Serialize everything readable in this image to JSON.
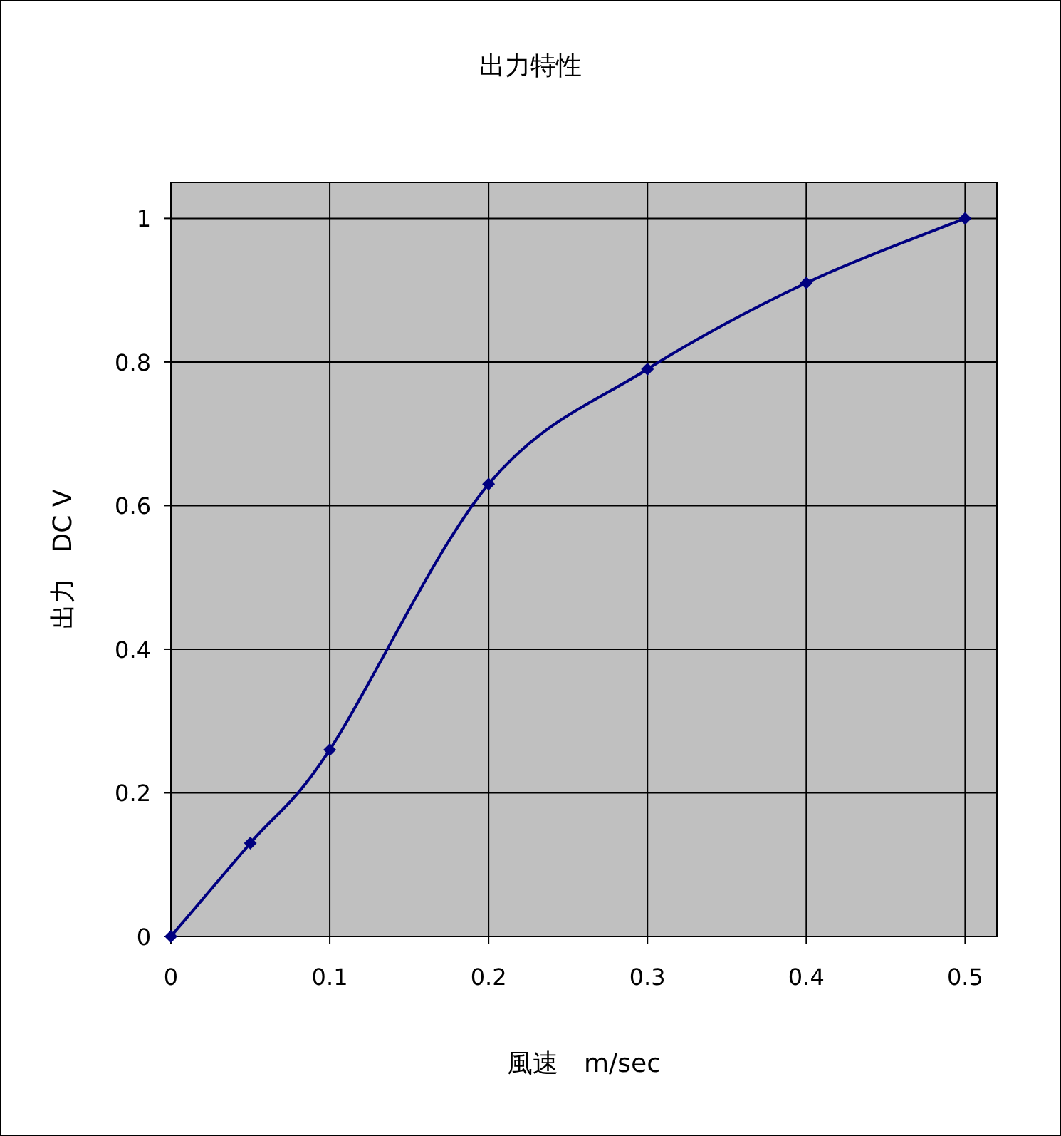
{
  "chart_data": {
    "type": "line",
    "title": "出力特性",
    "xlabel": "風速　m/sec",
    "ylabel": "出力　DC V",
    "x": [
      0,
      0.05,
      0.1,
      0.2,
      0.3,
      0.4,
      0.5
    ],
    "series": [
      {
        "color": "#000080",
        "values": [
          0,
          0.13,
          0.26,
          0.63,
          0.79,
          0.91,
          1.0
        ]
      }
    ],
    "xlim": [
      0,
      0.52
    ],
    "ylim": [
      0,
      1.05
    ],
    "xticks": [
      0,
      0.1,
      0.2,
      0.3,
      0.4,
      0.5
    ],
    "yticks": [
      0,
      0.2,
      0.4,
      0.6,
      0.8,
      1
    ],
    "grid": true,
    "marker": "diamond",
    "line_style": "solid"
  }
}
